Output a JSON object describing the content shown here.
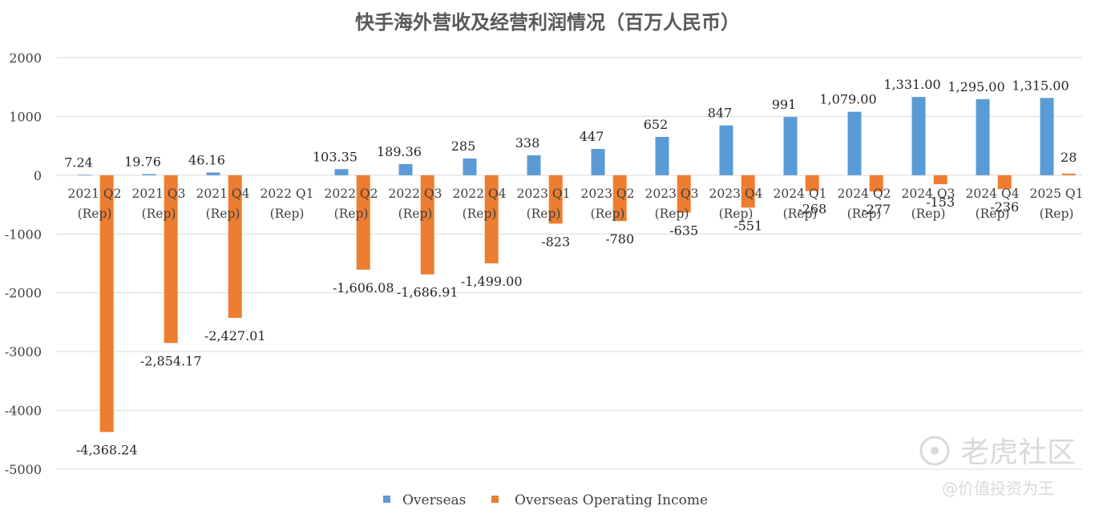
{
  "chart_data": {
    "type": "bar",
    "title": "快手海外营收及经营利润情况（百万人民币）",
    "categories": [
      [
        "2021 Q2",
        "(Rep)"
      ],
      [
        "2021 Q3",
        "(Rep)"
      ],
      [
        "2021 Q4",
        "(Rep)"
      ],
      [
        "2022 Q1",
        "(Rep)"
      ],
      [
        "2022 Q2",
        "(Rep)"
      ],
      [
        "2022 Q3",
        "(Rep)"
      ],
      [
        "2022 Q4",
        "(Rep)"
      ],
      [
        "2023 Q1",
        "(Rep)"
      ],
      [
        "2023 Q2",
        "(Rep)"
      ],
      [
        "2023 Q3",
        "(Rep)"
      ],
      [
        "2023 Q4",
        "(Rep)"
      ],
      [
        "2024 Q1",
        "(Rep)"
      ],
      [
        "2024 Q2",
        "(Rep)"
      ],
      [
        "2024 Q3",
        "(Rep)"
      ],
      [
        "2024 Q4",
        "(Rep)"
      ],
      [
        "2025 Q1",
        "(Rep)"
      ]
    ],
    "series": [
      {
        "name": "Overseas",
        "color": "#5b9bd5",
        "values": [
          7.24,
          19.76,
          46.16,
          null,
          103.35,
          189.36,
          285,
          338,
          447,
          652,
          847,
          991,
          1079,
          1331,
          1295,
          1315
        ],
        "labels": [
          "7.24",
          "19.76",
          "46.16",
          "",
          "103.35",
          "189.36",
          "285",
          "338",
          "447",
          "652",
          "847",
          "991",
          "1,079.00",
          "1,331.00",
          "1,295.00",
          "1,315.00"
        ]
      },
      {
        "name": "Overseas Operating Income",
        "color": "#ed7d31",
        "values": [
          -4368.24,
          -2854.17,
          -2427.01,
          null,
          -1606.08,
          -1686.91,
          -1499,
          -823,
          -780,
          -635,
          -551,
          -268,
          -277,
          -153,
          -236,
          28
        ],
        "labels": [
          "-4,368.24",
          "-2,854.17",
          "-2,427.01",
          "",
          "-1,606.08",
          "-1,686.91",
          "-1,499.00",
          "-823",
          "-780",
          "-635",
          "-551",
          "-268",
          "-277",
          "-153",
          "-236",
          "28"
        ]
      }
    ],
    "ylim": [
      -5000,
      2000
    ],
    "yticks": [
      "2000",
      "1000",
      "0",
      "-1000",
      "-2000",
      "-3000",
      "-4000",
      "-5000"
    ],
    "grid": true,
    "legend": "bottom"
  },
  "watermark": {
    "brand": "老虎社区",
    "author": "@价值投资为王"
  }
}
